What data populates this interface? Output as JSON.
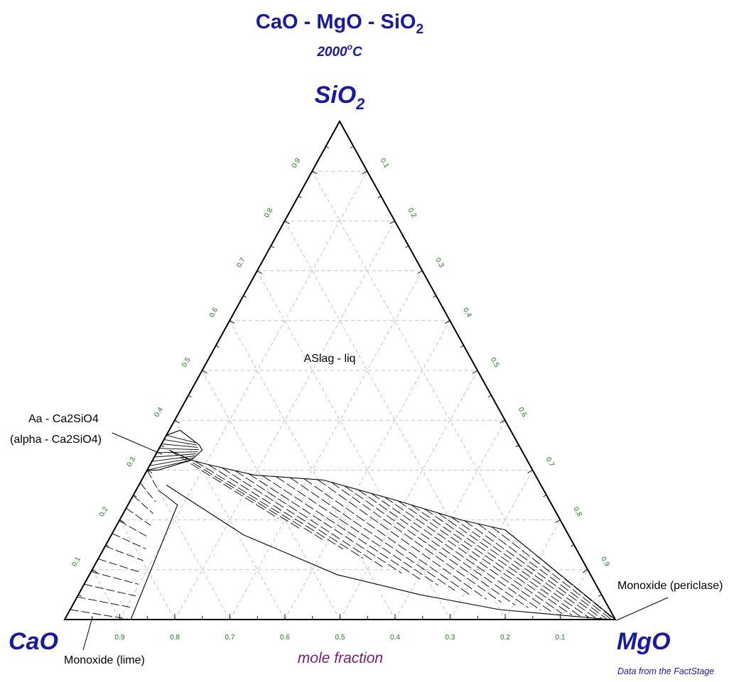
{
  "title": {
    "prefix": "CaO - MgO - SiO",
    "sub": "2"
  },
  "subtitle": {
    "value": "2000",
    "sup": "o",
    "unit": "C"
  },
  "vertices": {
    "top": {
      "main": "SiO",
      "sub": "2"
    },
    "left": {
      "main": "CaO"
    },
    "right": {
      "main": "MgO"
    }
  },
  "xlabel": "mole fraction",
  "credit": "Data from the FactStage",
  "ticks": {
    "bottom": [
      "0.9",
      "0.8",
      "0.7",
      "0.6",
      "0.5",
      "0.4",
      "0.3",
      "0.2",
      "0.1"
    ],
    "left": [
      "0.1",
      "0.2",
      "0.3",
      "0.4",
      "0.5",
      "0.6",
      "0.7",
      "0.8",
      "0.9"
    ],
    "right": [
      "0.1",
      "0.2",
      "0.3",
      "0.4",
      "0.5",
      "0.6",
      "0.7",
      "0.8",
      "0.9"
    ]
  },
  "chart_data": {
    "type": "ternary",
    "components": [
      "CaO",
      "MgO",
      "SiO2"
    ],
    "temperature": "2000 °C",
    "grid_step": 0.1,
    "phases": [
      {
        "name": "ASlag - liq"
      },
      {
        "name": "Aa - Ca2SiO4",
        "alias": "alpha - Ca2SiO4"
      },
      {
        "name": "Monoxide (periclase)"
      },
      {
        "name": "Monoxide (lime)"
      }
    ],
    "liquidus_boundary": [
      {
        "MgO": 0.02,
        "SiO2": 0.34
      },
      {
        "MgO": 0.07,
        "SiO2": 0.32
      },
      {
        "MgO": 0.11,
        "SiO2": 0.31
      },
      {
        "MgO": 0.2,
        "SiO2": 0.29
      },
      {
        "MgO": 0.33,
        "SiO2": 0.28
      },
      {
        "MgO": 0.48,
        "SiO2": 0.24
      },
      {
        "MgO": 0.62,
        "SiO2": 0.2
      },
      {
        "MgO": 0.71,
        "SiO2": 0.18
      }
    ],
    "lime_liquid_boundary": [
      {
        "MgO": 0.05,
        "SiO2": 0.27
      },
      {
        "MgO": 0.24,
        "SiO2": 0.17
      },
      {
        "MgO": 0.45,
        "SiO2": 0.09
      },
      {
        "MgO": 0.62,
        "SiO2": 0.05
      },
      {
        "MgO": 0.78,
        "SiO2": 0.02
      },
      {
        "MgO": 0.99,
        "SiO2": 0.0
      }
    ],
    "lime_periclase_boundary": [
      {
        "MgO": 0.04,
        "SiO2": 0.26
      },
      {
        "MgO": 0.09,
        "SiO2": 0.23
      },
      {
        "MgO": 0.12,
        "SiO2": 0.0
      }
    ],
    "ca2sio4_region": [
      {
        "MgO": 0.0,
        "SiO2": 0.37
      },
      {
        "MgO": 0.02,
        "SiO2": 0.38
      },
      {
        "MgO": 0.07,
        "SiO2": 0.35
      },
      {
        "MgO": 0.08,
        "SiO2": 0.34
      },
      {
        "MgO": 0.07,
        "SiO2": 0.32
      },
      {
        "MgO": 0.02,
        "SiO2": 0.3
      },
      {
        "MgO": 0.0,
        "SiO2": 0.3
      }
    ]
  }
}
